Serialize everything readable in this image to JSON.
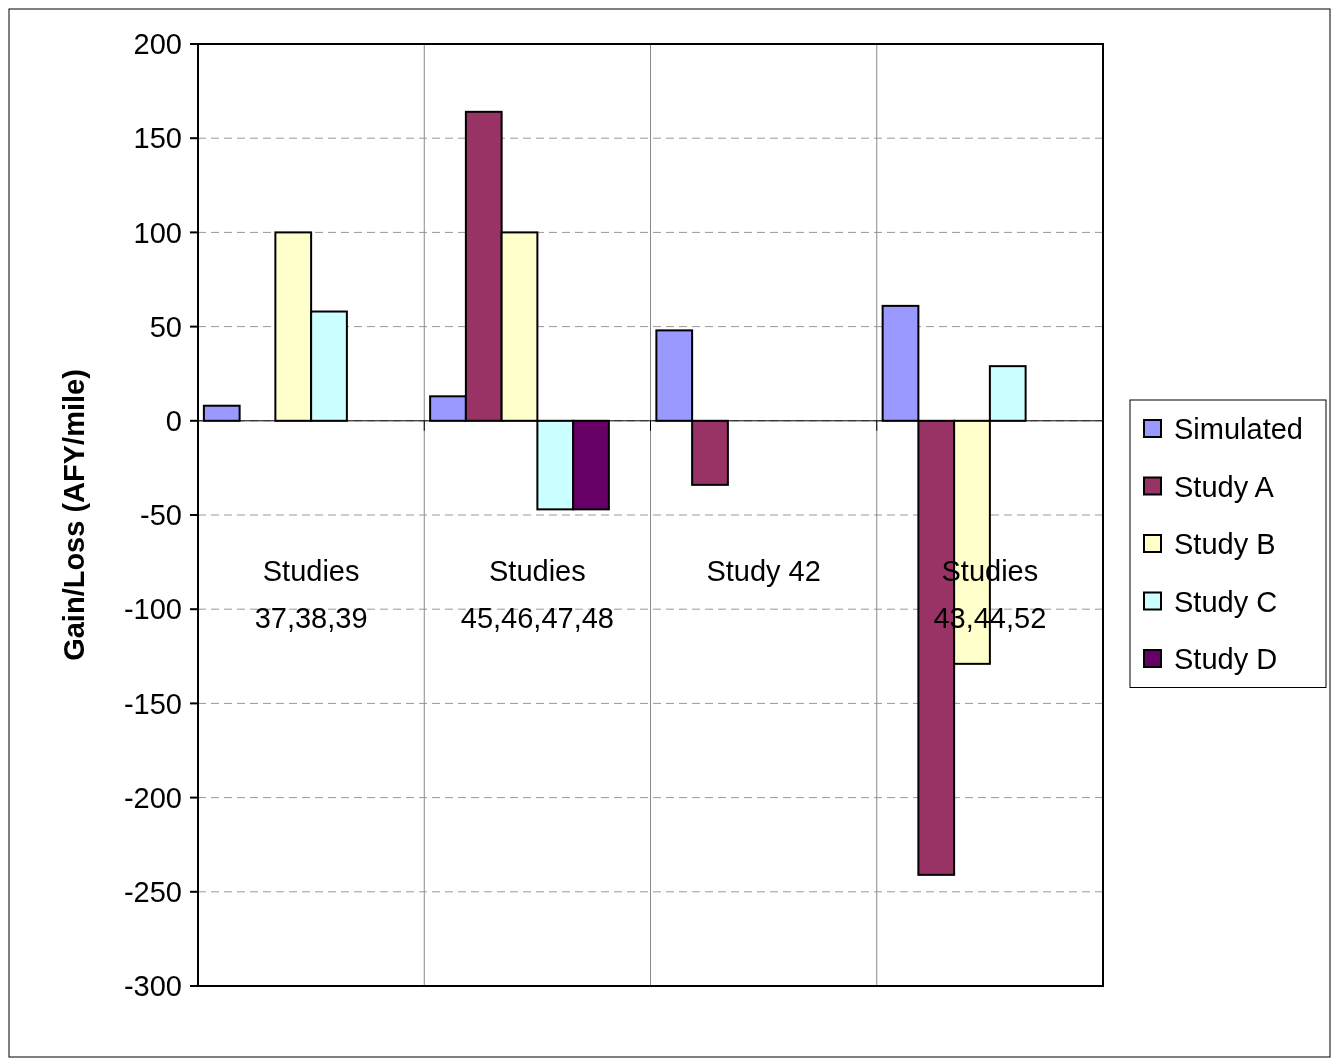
{
  "chart_data": {
    "type": "bar",
    "ylabel": "Gain/Loss (AFY/mile)",
    "categories": [
      "Studies 37,38,39",
      "Studies 45,46,47,48",
      "Study 42",
      "Studies 43,44,52"
    ],
    "series": [
      {
        "name": "Simulated",
        "color": "#9999ff",
        "values": [
          8,
          13,
          48,
          61
        ]
      },
      {
        "name": "Study A",
        "color": "#993366",
        "values": [
          null,
          164,
          -34,
          -241
        ]
      },
      {
        "name": "Study B",
        "color": "#ffffcc",
        "values": [
          100,
          100,
          null,
          -129
        ]
      },
      {
        "name": "Study C",
        "color": "#ccffff",
        "values": [
          58,
          -47,
          null,
          29
        ]
      },
      {
        "name": "Study D",
        "color": "#660066",
        "values": [
          null,
          -47,
          null,
          null
        ]
      }
    ],
    "ylim": [
      -300,
      200
    ],
    "yticks": [
      -300,
      -250,
      -200,
      -150,
      -100,
      -50,
      0,
      50,
      100,
      150,
      200
    ],
    "grid": true,
    "legend": "right"
  }
}
